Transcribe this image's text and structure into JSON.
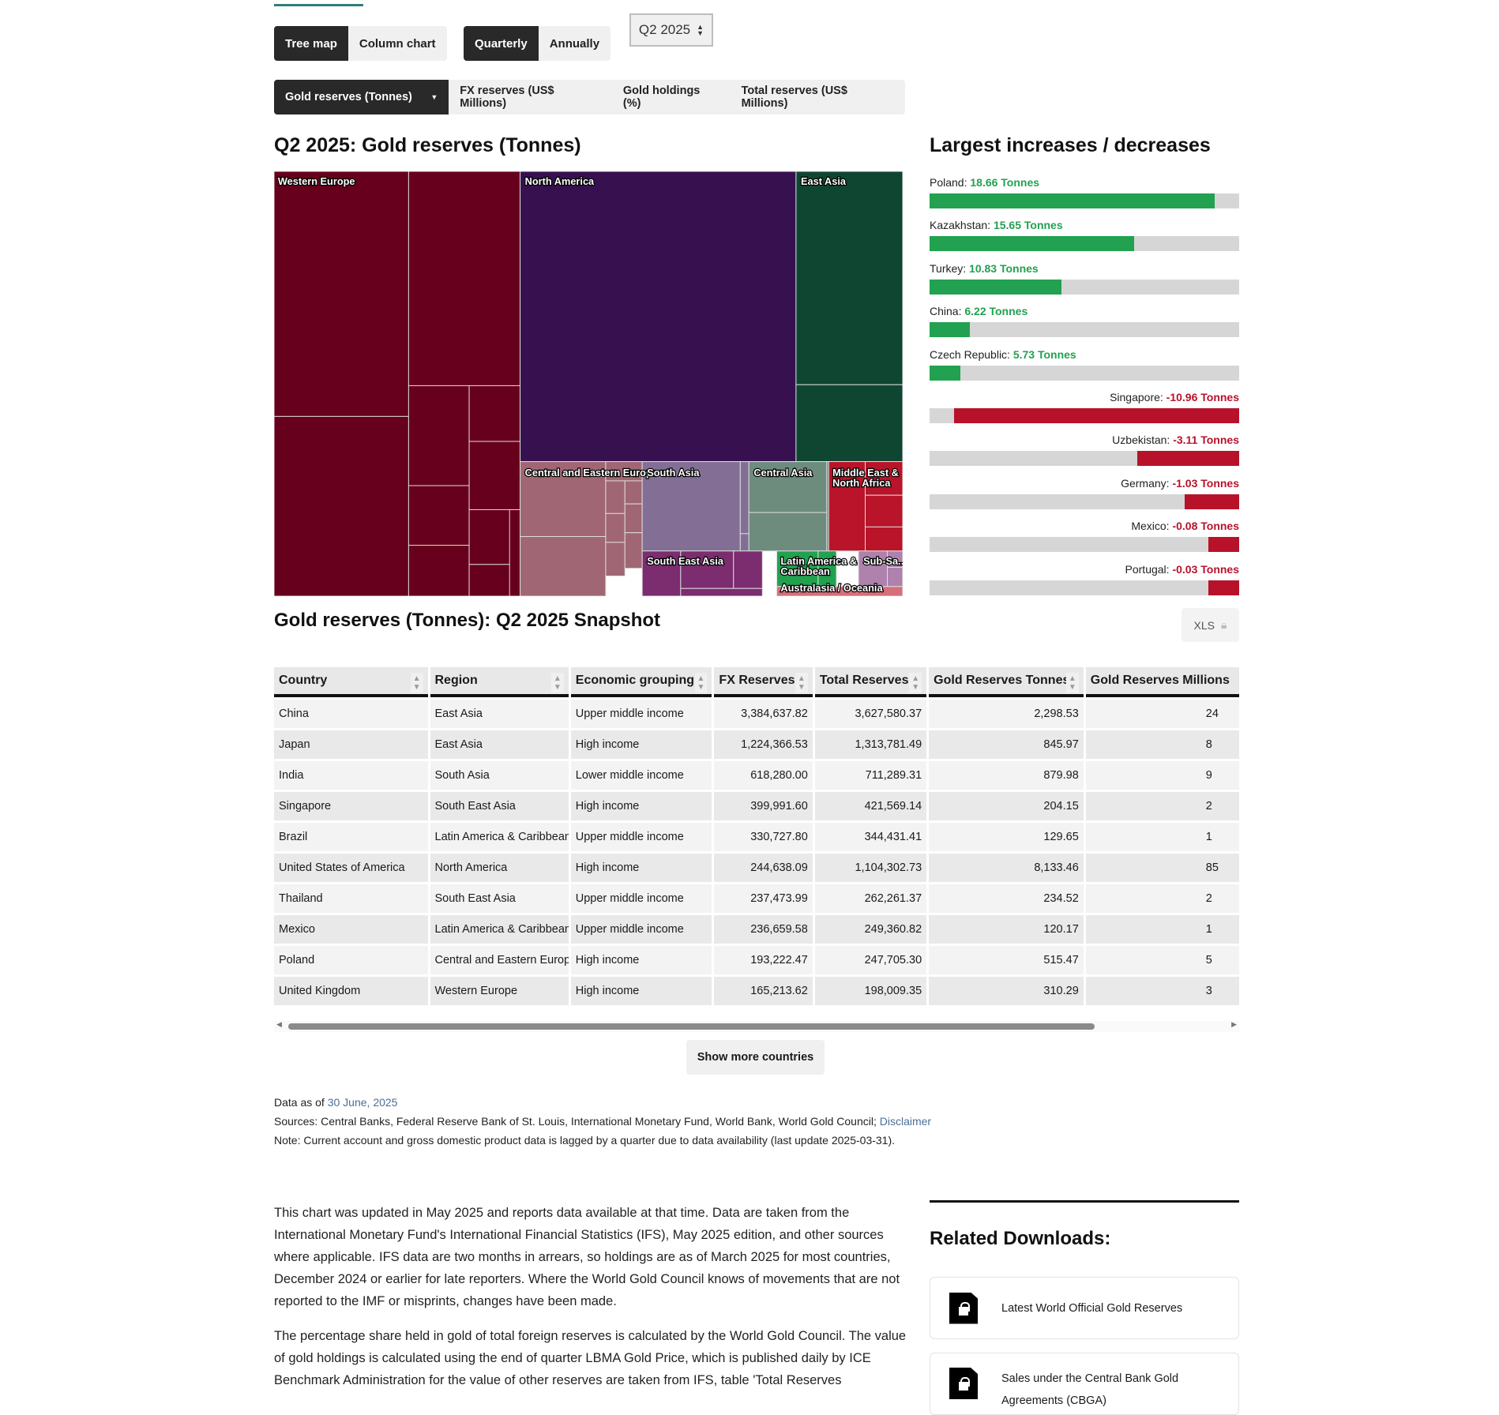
{
  "view_toggle": {
    "options": [
      "Tree map",
      "Column chart"
    ],
    "selected": "Tree map"
  },
  "period_toggle": {
    "options": [
      "Quarterly",
      "Annually"
    ],
    "selected": "Quarterly"
  },
  "period_select": {
    "value": "Q2 2025"
  },
  "metric_tabs": [
    "Gold reserves (Tonnes)",
    "FX reserves (US$ Millions)",
    "Gold holdings (%)",
    "Total reserves (US$ Millions)"
  ],
  "treemap": {
    "title": "Q2 2025: Gold reserves (Tonnes)",
    "regions": [
      {
        "label": "Western Europe",
        "color": "#67001c"
      },
      {
        "label": "North America",
        "color": "#37104f"
      },
      {
        "label": "East Asia",
        "color": "#0f4631"
      },
      {
        "label": "Central and Eastern Europe",
        "color": "#a16673"
      },
      {
        "label": "South Asia",
        "color": "#836f95"
      },
      {
        "label": "Central Asia",
        "color": "#6d8c7e"
      },
      {
        "label": "Middle East & North Africa",
        "color": "#b91429"
      },
      {
        "label": "South East Asia",
        "color": "#7b2d6f"
      },
      {
        "label": "Latin America & Caribbean",
        "color": "#22a14f"
      },
      {
        "label": "Sub-Sa...",
        "color": "#ae82ad"
      },
      {
        "label": "Australasia / Oceania",
        "color": "#d66f7b"
      }
    ]
  },
  "changes": {
    "title": "Largest increases / decreases",
    "unit": "Tonnes",
    "positive_color": "#22a150",
    "negative_color": "#b8122a",
    "items": [
      {
        "country": "Poland:",
        "value": "18.66 Tonnes",
        "fill": 0.92,
        "dir": "up"
      },
      {
        "country": "Kazakhstan:",
        "value": "15.65 Tonnes",
        "fill": 0.66,
        "dir": "up"
      },
      {
        "country": "Turkey:",
        "value": "10.83 Tonnes",
        "fill": 0.425,
        "dir": "up"
      },
      {
        "country": "China:",
        "value": "6.22 Tonnes",
        "fill": 0.13,
        "dir": "up"
      },
      {
        "country": "Czech Republic:",
        "value": "5.73 Tonnes",
        "fill": 0.1,
        "dir": "up"
      },
      {
        "country": "Singapore:",
        "value": "-10.96 Tonnes",
        "fill": 0.92,
        "dir": "down"
      },
      {
        "country": "Uzbekistan:",
        "value": "-3.11 Tonnes",
        "fill": 0.33,
        "dir": "down"
      },
      {
        "country": "Germany:",
        "value": "-1.03 Tonnes",
        "fill": 0.175,
        "dir": "down"
      },
      {
        "country": "Mexico:",
        "value": "-0.08 Tonnes",
        "fill": 0.1,
        "dir": "down"
      },
      {
        "country": "Portugal:",
        "value": "-0.03 Tonnes",
        "fill": 0.1,
        "dir": "down"
      }
    ]
  },
  "snapshot": {
    "title": "Gold reserves (Tonnes): Q2 2025 Snapshot",
    "xls_label": "XLS",
    "columns": [
      "Country",
      "Region",
      "Economic grouping",
      "FX Reserves",
      "Total Reserves",
      "Gold Reserves Tonnes",
      "Gold Reserves Millions"
    ],
    "rows": [
      [
        "China",
        "East Asia",
        "Upper middle income",
        "3,384,637.82",
        "3,627,580.37",
        "2,298.53",
        "24"
      ],
      [
        "Japan",
        "East Asia",
        "High income",
        "1,224,366.53",
        "1,313,781.49",
        "845.97",
        "8"
      ],
      [
        "India",
        "South Asia",
        "Lower middle income",
        "618,280.00",
        "711,289.31",
        "879.98",
        "9"
      ],
      [
        "Singapore",
        "South East Asia",
        "High income",
        "399,991.60",
        "421,569.14",
        "204.15",
        "2"
      ],
      [
        "Brazil",
        "Latin America & Caribbean",
        "Upper middle income",
        "330,727.80",
        "344,431.41",
        "129.65",
        "1"
      ],
      [
        "United States of America",
        "North America",
        "High income",
        "244,638.09",
        "1,104,302.73",
        "8,133.46",
        "85"
      ],
      [
        "Thailand",
        "South East Asia",
        "Upper middle income",
        "237,473.99",
        "262,261.37",
        "234.52",
        "2"
      ],
      [
        "Mexico",
        "Latin America & Caribbean",
        "Upper middle income",
        "236,659.58",
        "249,360.82",
        "120.17",
        "1"
      ],
      [
        "Poland",
        "Central and Eastern Europe",
        "High income",
        "193,222.47",
        "247,705.30",
        "515.47",
        "5"
      ],
      [
        "United Kingdom",
        "Western Europe",
        "High income",
        "165,213.62",
        "198,009.35",
        "310.29",
        "3"
      ]
    ],
    "show_more": "Show more countries"
  },
  "footer": {
    "data_as_of_label": "Data as of",
    "data_as_of": "30 June, 2025",
    "sources": "Sources: Central Banks, Federal Reserve Bank of St. Louis, International Monetary Fund, World Bank, World Gold Council;",
    "disclaimer": "Disclaimer",
    "note": "Note: Current account and gross domestic product data is lagged by a quarter due to data availability (last update 2025-03-31)."
  },
  "body": {
    "p1": "This chart was updated in May 2025 and reports data available at that time. Data are taken from the International Monetary Fund's International Financial Statistics (IFS), May 2025 edition, and other sources where applicable. IFS data are two months in arrears, so holdings are as of March 2025 for most countries, December 2024 or earlier for late reporters. Where the World Gold Council knows of movements that are not reported to the IMF or misprints, changes have been made.",
    "p2": "The percentage share held in gold of total foreign reserves is calculated by the World Gold Council. The value of gold holdings is calculated using the end of quarter LBMA Gold Price, which is published daily by ICE Benchmark Administration for the value of other reserves are taken from IFS, table 'Total Reserves"
  },
  "related": {
    "title": "Related Downloads:",
    "items": [
      "Latest World Official Gold Reserves",
      "Sales under the Central Bank Gold Agreements (CBGA)"
    ]
  }
}
